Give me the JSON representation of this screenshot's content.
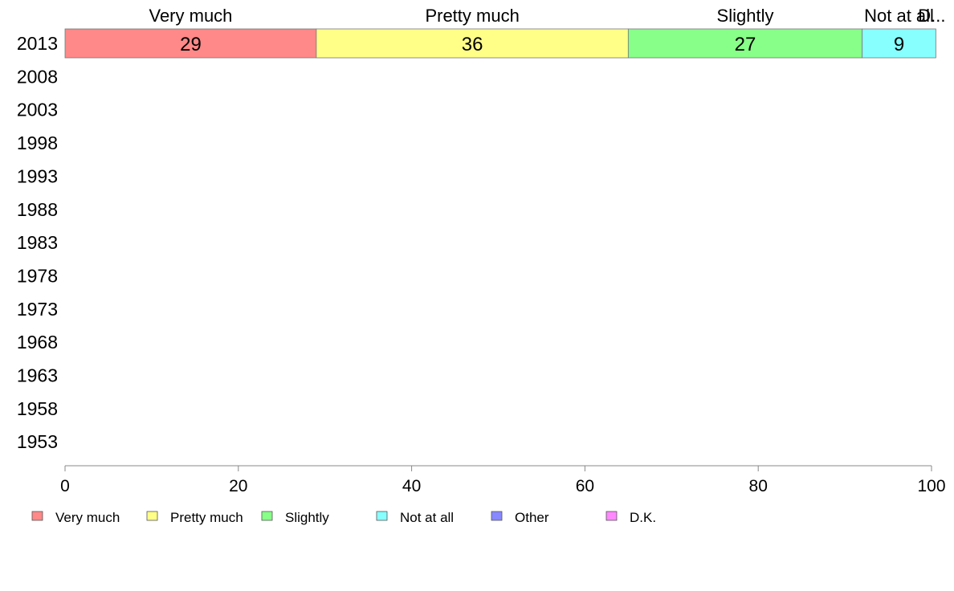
{
  "chart_data": {
    "type": "bar",
    "orientation": "horizontal",
    "stacked": true,
    "categories": [
      "2013",
      "2008",
      "2003",
      "1998",
      "1993",
      "1988",
      "1983",
      "1978",
      "1973",
      "1968",
      "1963",
      "1958",
      "1953"
    ],
    "series": [
      {
        "name": "Very much",
        "color": "#ff8888",
        "values": [
          29,
          null,
          null,
          null,
          null,
          null,
          null,
          null,
          null,
          null,
          null,
          null,
          null
        ],
        "data_labels": [
          "29"
        ],
        "top_label": "Very much"
      },
      {
        "name": "Pretty much",
        "color": "#ffff88",
        "values": [
          36,
          null,
          null,
          null,
          null,
          null,
          null,
          null,
          null,
          null,
          null,
          null,
          null
        ],
        "data_labels": [
          "36"
        ],
        "top_label": "Pretty much"
      },
      {
        "name": "Slightly",
        "color": "#88ff88",
        "values": [
          27,
          null,
          null,
          null,
          null,
          null,
          null,
          null,
          null,
          null,
          null,
          null,
          null
        ],
        "data_labels": [
          "27"
        ],
        "top_label": "Slightly"
      },
      {
        "name": "Not at all",
        "color": "#88ffff",
        "values": [
          8.5,
          null,
          null,
          null,
          null,
          null,
          null,
          null,
          null,
          null,
          null,
          null,
          null
        ],
        "data_labels": [
          "9"
        ],
        "top_label": "Not at all"
      },
      {
        "name": "Other",
        "color": "#8888ff",
        "values": [
          0,
          null,
          null,
          null,
          null,
          null,
          null,
          null,
          null,
          null,
          null,
          null,
          null
        ],
        "data_labels": [
          ""
        ],
        "top_label": ""
      },
      {
        "name": "D.K.",
        "color": "#ff88ff",
        "values": [
          0,
          null,
          null,
          null,
          null,
          null,
          null,
          null,
          null,
          null,
          null,
          null,
          null
        ],
        "data_labels": [
          ""
        ],
        "top_label": "D..."
      }
    ],
    "xlim": [
      0,
      100
    ],
    "xticks": [
      "0",
      "20",
      "40",
      "60",
      "80",
      "100"
    ],
    "grid": false,
    "legend_position": "bottom-left"
  }
}
